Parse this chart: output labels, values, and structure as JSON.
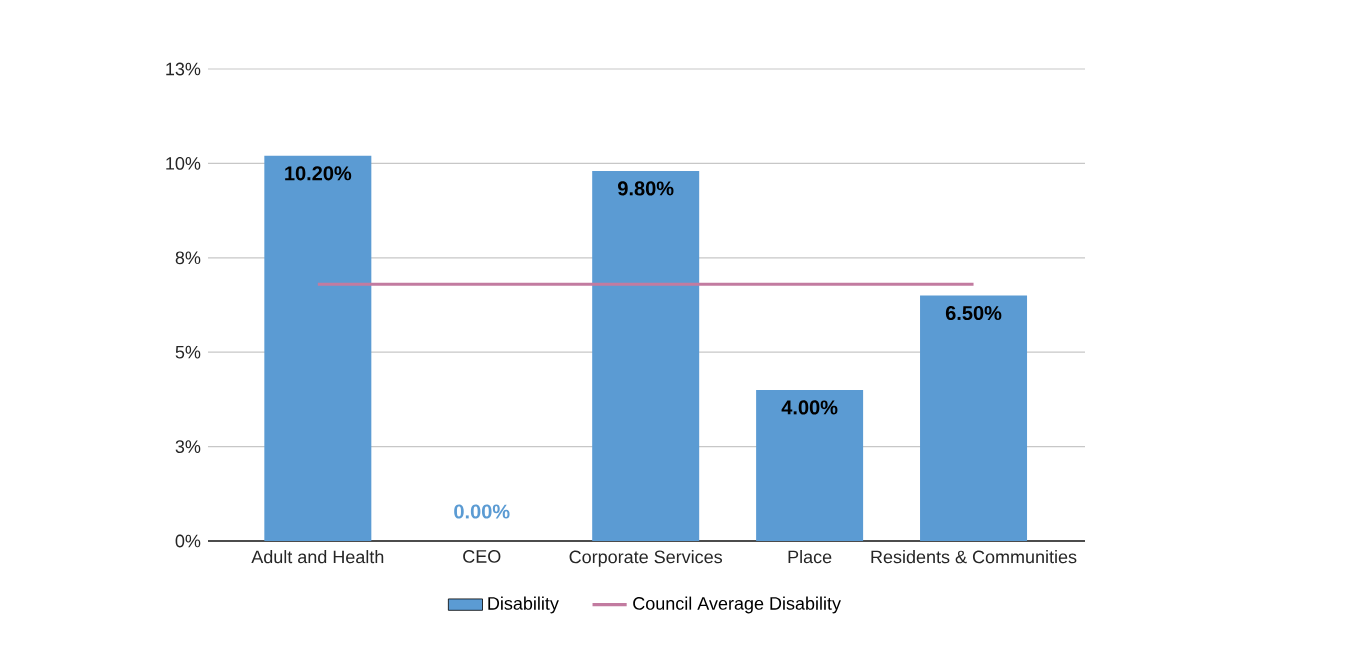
{
  "chart_data": {
    "type": "bar",
    "categories": [
      "Adult and Health",
      "CEO",
      "Corporate Services",
      "Place",
      "Residents & Communities"
    ],
    "series": [
      {
        "name": "Disability",
        "color": "#5b9bd3",
        "values": [
          10.2,
          0,
          9.8,
          4,
          6.5
        ],
        "value_labels": [
          "10.20%",
          "0.00%",
          "9.80%",
          "4.00%",
          "6.50%"
        ]
      },
      {
        "name": "Council Average Disability",
        "type": "line",
        "color": "#c27ba0",
        "values": [
          6.8,
          6.8,
          6.8,
          6.8,
          6.8
        ]
      }
    ],
    "ylim": [
      0,
      12.5
    ],
    "yticks": [
      {
        "value": 0,
        "label": "0%"
      },
      {
        "value": 2.5,
        "label": "3%"
      },
      {
        "value": 5,
        "label": "5%"
      },
      {
        "value": 7.5,
        "label": "8%"
      },
      {
        "value": 10,
        "label": "10%"
      },
      {
        "value": 12.5,
        "label": "13%"
      }
    ],
    "grid": "y",
    "legend": "bottom",
    "marker": "none"
  }
}
